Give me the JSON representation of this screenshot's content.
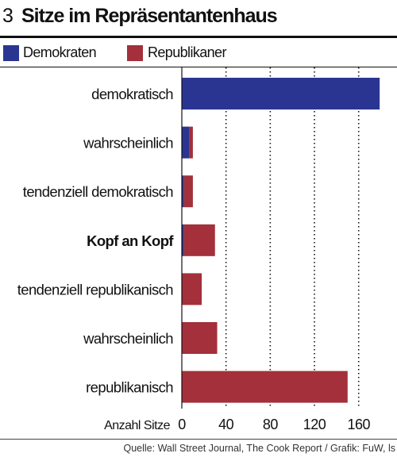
{
  "header": {
    "number": "3",
    "title": "Sitze im Repräsentantenhaus"
  },
  "legend": [
    {
      "label": "Demokraten",
      "color": "#2a3592"
    },
    {
      "label": "Republikaner",
      "color": "#a3303a"
    }
  ],
  "source": "Quelle: Wall Street Journal, The Cook Report / Grafik: FuW, ls",
  "chart_data": {
    "type": "bar",
    "orientation": "horizontal",
    "stacked": true,
    "categories": [
      "demokratisch",
      "wahrscheinlich",
      "tendenziell demokratisch",
      "Kopf an Kopf",
      "tendenziell republikanisch",
      "wahrscheinlich",
      "republikanisch"
    ],
    "bold_categories": [
      "Kopf an Kopf"
    ],
    "series": [
      {
        "name": "Demokraten",
        "color": "#2a3592",
        "values": [
          179,
          7,
          2,
          2,
          0,
          0,
          0
        ]
      },
      {
        "name": "Republikaner",
        "color": "#a3303a",
        "values": [
          0,
          3,
          8,
          28,
          18,
          32,
          150
        ]
      }
    ],
    "xlabel": "Anzahl Sitze",
    "xticks": [
      0,
      40,
      80,
      120,
      160
    ],
    "xlim": [
      0,
      180
    ],
    "grid": "x-dotted"
  }
}
